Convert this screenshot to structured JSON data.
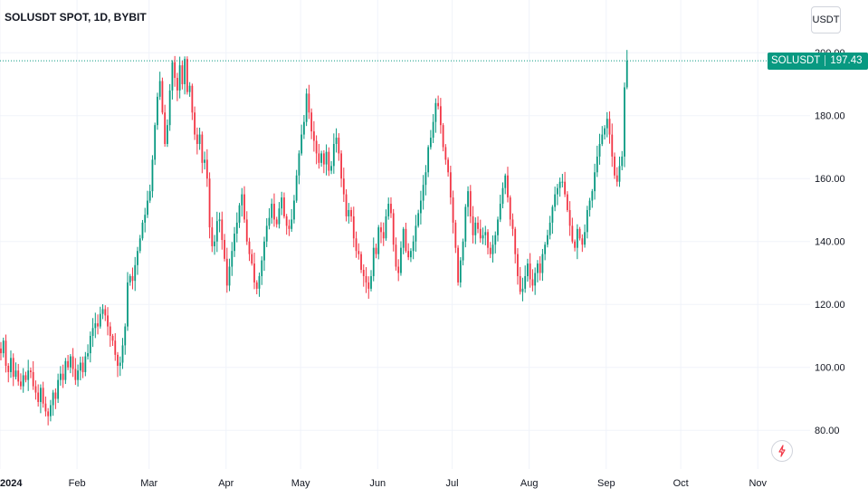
{
  "header": {
    "title": "SOLUSDT SPOT, 1D, BYBIT"
  },
  "scale": {
    "currency_label": "USDT"
  },
  "last_price": {
    "symbol": "SOLUSDT",
    "value": "197.43"
  },
  "colors": {
    "up": "#089981",
    "down": "#f23645",
    "grid": "#f0f3fa",
    "last_line": "#089981"
  },
  "chart_data": {
    "type": "candlestick",
    "title": "SOLUSDT SPOT, 1D, BYBIT",
    "ylim": [
      70,
      211
    ],
    "y_ticks": [
      {
        "value": 80,
        "label": "80.00"
      },
      {
        "value": 100,
        "label": "100.00"
      },
      {
        "value": 120,
        "label": "120.00"
      },
      {
        "value": 140,
        "label": "140.00"
      },
      {
        "value": 160,
        "label": "160.00"
      },
      {
        "value": 180,
        "label": "180.00"
      },
      {
        "value": 200,
        "label": "200.00"
      }
    ],
    "x_ticks": [
      {
        "date": "2024-01-01",
        "label": "2024"
      },
      {
        "date": "2024-02-01",
        "label": "Feb"
      },
      {
        "date": "2024-03-01",
        "label": "Mar"
      },
      {
        "date": "2024-04-01",
        "label": "Apr"
      },
      {
        "date": "2024-05-01",
        "label": "May"
      },
      {
        "date": "2024-06-01",
        "label": "Jun"
      },
      {
        "date": "2024-07-01",
        "label": "Jul"
      },
      {
        "date": "2024-08-01",
        "label": "Aug"
      },
      {
        "date": "2024-09-01",
        "label": "Sep"
      },
      {
        "date": "2024-10-01",
        "label": "Oct"
      },
      {
        "date": "2024-11-01",
        "label": "Nov"
      }
    ],
    "start_date": "2024-01-01",
    "closes": [
      104.5,
      108.5,
      100.5,
      98.5,
      103,
      97,
      99,
      95.5,
      94,
      97.5,
      96,
      99,
      98.5,
      94,
      92,
      89,
      93.5,
      88.5,
      86,
      84.5,
      88,
      92,
      90,
      96,
      98,
      96,
      102,
      100,
      103.5,
      99.5,
      96,
      99,
      101.5,
      98.5,
      103.5,
      104.5,
      110,
      112.5,
      114,
      113,
      117,
      118.5,
      116.5,
      113,
      110,
      108.5,
      104,
      100.5,
      101.5,
      107,
      113,
      127,
      129,
      127.5,
      132.5,
      137,
      141,
      146,
      148.5,
      153,
      156,
      166,
      177,
      186,
      191,
      181,
      171,
      177,
      188,
      197,
      192,
      188,
      196,
      190,
      198,
      187.5,
      189.5,
      181,
      174,
      171,
      174,
      165,
      166,
      160,
      144.5,
      138.5,
      140,
      146.5,
      147,
      140.5,
      134.5,
      126,
      132,
      137,
      142.5,
      146,
      151.5,
      155,
      147,
      140,
      136,
      133,
      127,
      125,
      129,
      134,
      140,
      145,
      147.5,
      152,
      147,
      145.5,
      150.5,
      154,
      148,
      145,
      144,
      147,
      153,
      161,
      168,
      174,
      178,
      187,
      181,
      175,
      172,
      168,
      165,
      168,
      164.5,
      168.5,
      162.5,
      164,
      171,
      173,
      168,
      160,
      155,
      148,
      150,
      148,
      141,
      137,
      136,
      131,
      129,
      127,
      125,
      129,
      138,
      136,
      144.5,
      143,
      141,
      148,
      152,
      149,
      139,
      132,
      130,
      138,
      144,
      137,
      135,
      137,
      140,
      145,
      149,
      153,
      158,
      162,
      170,
      173,
      178,
      184,
      183,
      177,
      170,
      166,
      162,
      154,
      146,
      138,
      127,
      134,
      140,
      151,
      156,
      148,
      142,
      146,
      144,
      141,
      142,
      143,
      138,
      136,
      139,
      142,
      147,
      152,
      157,
      161,
      154,
      147,
      144,
      136,
      129,
      124,
      125,
      129,
      133,
      128,
      126,
      130,
      133,
      130,
      136,
      139,
      142,
      146,
      151,
      155,
      157,
      159,
      159,
      155,
      150,
      145,
      140,
      138,
      144,
      141,
      139,
      143,
      150,
      153,
      156,
      162,
      167,
      171,
      174,
      176,
      179,
      174,
      167,
      161,
      159,
      164,
      167,
      189,
      197.43
    ]
  }
}
